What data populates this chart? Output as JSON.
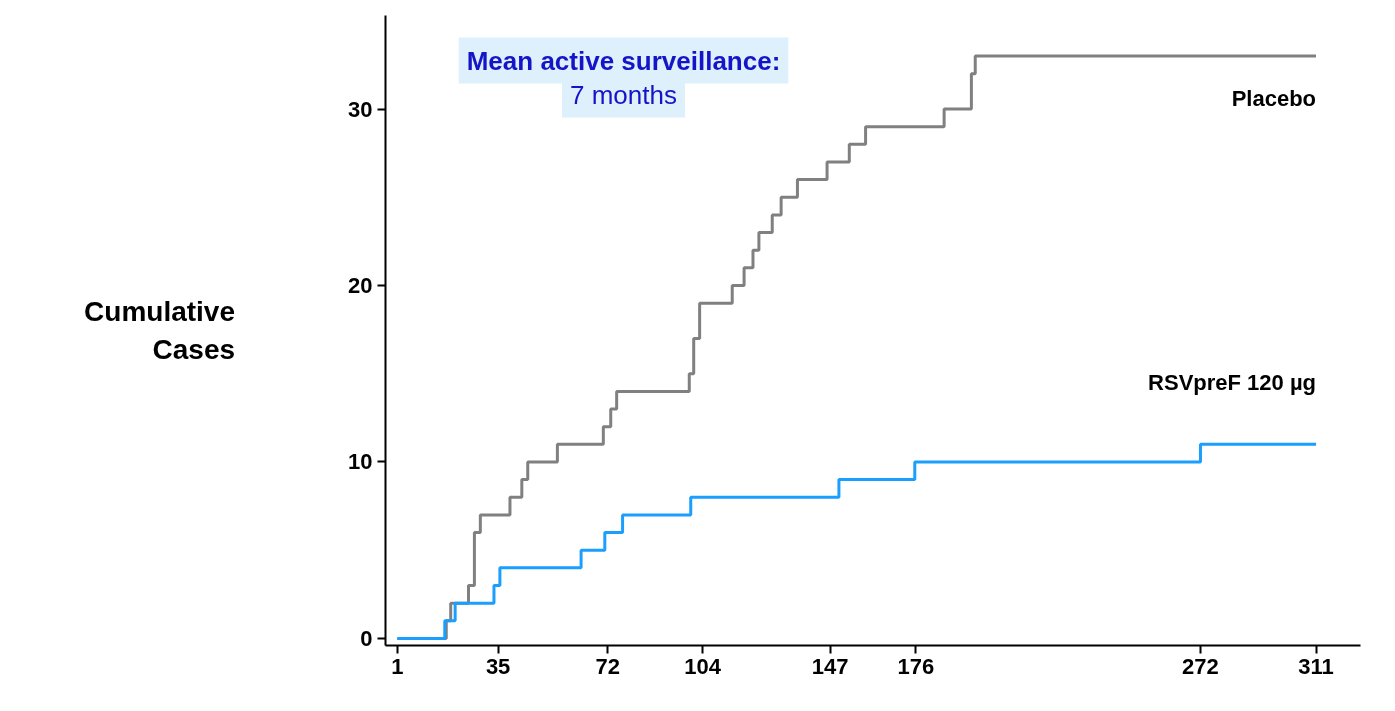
{
  "chart_data": {
    "type": "step",
    "ylabel": "Cumulative Cases",
    "xlim": [
      -3,
      326
    ],
    "xticks": [
      1,
      35,
      72,
      104,
      147,
      176,
      272,
      311
    ],
    "ylim": [
      -0.4,
      35.3
    ],
    "yticks": [
      0,
      10,
      20,
      30
    ],
    "grid": false,
    "line_style": "solid",
    "marker": "none",
    "annotations": [
      "Mean active surveillance:",
      "7 months"
    ],
    "series": [
      {
        "name": "Placebo",
        "color": "#808080",
        "x": [
          1,
          17.5,
          19,
          25,
          27,
          29,
          39,
          43,
          45,
          55,
          70.5,
          73,
          75,
          99.5,
          101,
          103,
          114,
          118,
          121,
          123,
          127.5,
          130.5,
          136,
          146,
          153.5,
          159,
          185.5,
          194.7,
          196,
          311
        ],
        "values": [
          0,
          1,
          2,
          3,
          6,
          7,
          8,
          9,
          10,
          11,
          12,
          13,
          14,
          15,
          17,
          19,
          20,
          21,
          22,
          23,
          24,
          25,
          26,
          27,
          28,
          29,
          30,
          32,
          33,
          33
        ]
      },
      {
        "name": "RSVpreF 120 µg",
        "color": "#1a9fff",
        "x": [
          1,
          17,
          20.5,
          33.6,
          35.6,
          63,
          71,
          77,
          100,
          150,
          175.6,
          272,
          311
        ],
        "values": [
          0,
          1,
          2,
          3,
          4,
          5,
          6,
          7,
          8,
          9,
          10,
          11,
          11
        ]
      }
    ]
  }
}
